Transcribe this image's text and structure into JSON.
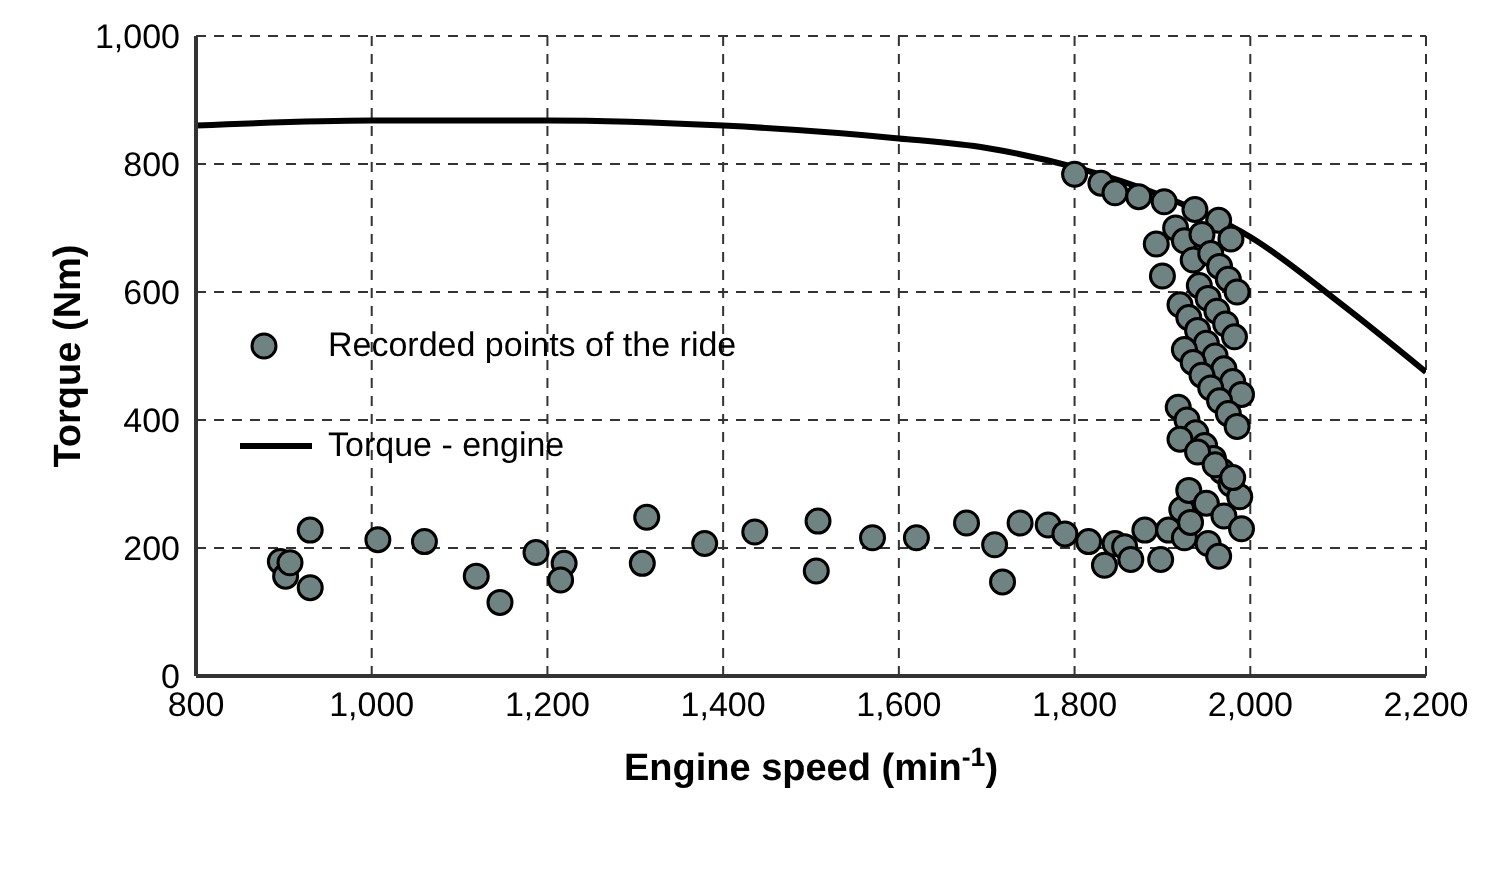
{
  "chart_data": {
    "type": "scatter",
    "xlabel": "Engine speed (min$^{-1}$)",
    "ylabel": "Torque (Nm)",
    "xlim": [
      800,
      2200
    ],
    "ylim": [
      0,
      1000
    ],
    "xticks": [
      800,
      {
        "value": 1000,
        "label": "1,000"
      },
      {
        "value": 1200,
        "label": "1,200"
      },
      {
        "value": 1400,
        "label": "1,400"
      },
      {
        "value": 1600,
        "label": "1,600"
      },
      {
        "value": 1800,
        "label": "1,800"
      },
      {
        "value": 2000,
        "label": "2,000"
      },
      {
        "value": 2200,
        "label": "2,200"
      }
    ],
    "yticks": [
      0,
      200,
      400,
      600,
      800,
      {
        "value": 1000,
        "label": "1,000"
      }
    ],
    "grid": true,
    "legend": "left",
    "marker": "circle",
    "series": [
      {
        "name": "Recorded points of the ride",
        "color": "#6f8383",
        "x": [
          896,
          902,
          907,
          930,
          930,
          1007,
          1060,
          1119,
          1146,
          1187,
          1219,
          1215,
          1313,
          1308,
          1379,
          1436,
          1508,
          1506,
          1570,
          1620,
          1677,
          1709,
          1718,
          1738,
          1770,
          1789,
          1816,
          1834,
          1846,
          1857,
          1864,
          1880,
          1898,
          1907,
          1925,
          1952,
          1964,
          1800,
          1830,
          1846,
          1873,
          1902,
          1937,
          1964,
          1978,
          1893,
          1900,
          1915,
          1925,
          1935,
          1945,
          1955,
          1965,
          1975,
          1985,
          1920,
          1930,
          1940,
          1950,
          1960,
          1970,
          1980,
          1990,
          1918,
          1928,
          1938,
          1948,
          1958,
          1968,
          1978,
          1988,
          1922,
          1932,
          1942,
          1952,
          1962,
          1972,
          1982,
          1925,
          1935,
          1945,
          1955,
          1965,
          1975,
          1985,
          1920,
          1940,
          1960,
          1980,
          1930,
          1950,
          1970,
          1990
        ],
        "values": [
          179,
          156,
          177,
          228,
          138,
          213,
          210,
          156,
          115,
          193,
          176,
          150,
          248,
          176,
          207,
          225,
          242,
          164,
          216,
          216,
          239,
          205,
          147,
          239,
          236,
          222,
          210,
          173,
          207,
          202,
          182,
          228,
          182,
          228,
          216,
          207,
          187,
          784,
          770,
          755,
          749,
          741,
          729,
          712,
          683,
          675,
          625,
          700,
          680,
          650,
          690,
          660,
          640,
          620,
          600,
          580,
          560,
          540,
          520,
          500,
          480,
          460,
          440,
          420,
          400,
          380,
          360,
          340,
          320,
          300,
          280,
          260,
          240,
          610,
          590,
          570,
          550,
          530,
          510,
          490,
          470,
          450,
          430,
          410,
          390,
          370,
          350,
          330,
          310,
          290,
          270,
          250,
          230
        ]
      },
      {
        "name": "Torque - engine",
        "type": "line",
        "color": "#000000",
        "marker": "none",
        "line_style": "solid",
        "x": [
          800,
          1000,
          1200,
          1400,
          1600,
          1700,
          1800,
          1900,
          2000,
          2100,
          2200
        ],
        "values": [
          860,
          868,
          868,
          860,
          840,
          825,
          795,
          750,
          686,
          585,
          475
        ]
      }
    ]
  }
}
